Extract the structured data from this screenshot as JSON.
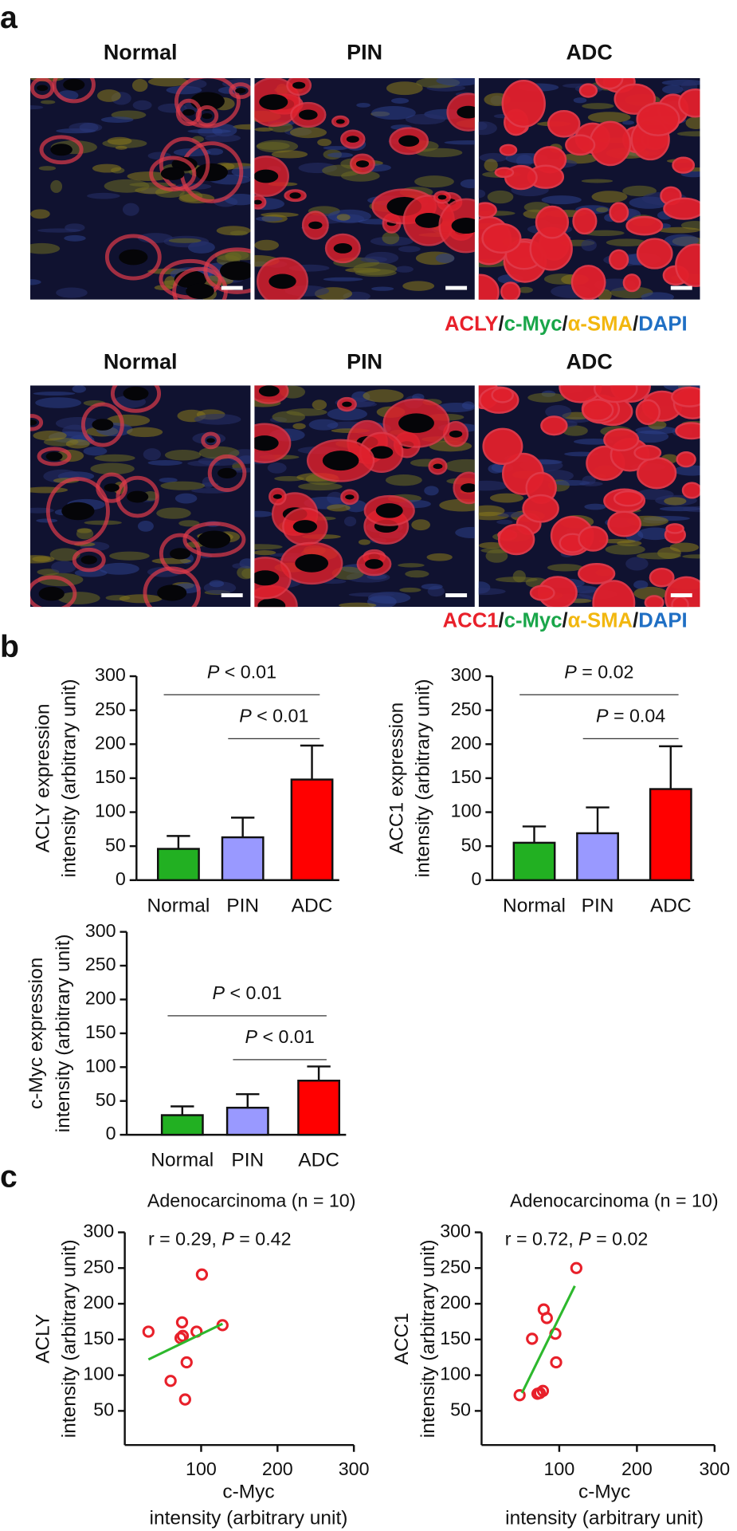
{
  "panel_labels": [
    "a",
    "b",
    "c"
  ],
  "image_rows": [
    {
      "titles": [
        "Normal",
        "PIN",
        "ADC"
      ],
      "legend": [
        {
          "text": "ACLY",
          "color": "#e8202a"
        },
        {
          "text": "/",
          "color": "#1a1a1a"
        },
        {
          "text": "c-Myc",
          "color": "#1aa64a"
        },
        {
          "text": "/",
          "color": "#1a1a1a"
        },
        {
          "text": "α-SMA",
          "color": "#f2b70f"
        },
        {
          "text": "/",
          "color": "#1a1a1a"
        },
        {
          "text": "DAPI",
          "color": "#1f6fc4"
        }
      ]
    },
    {
      "titles": [
        "Normal",
        "PIN",
        "ADC"
      ],
      "legend": [
        {
          "text": "ACC1",
          "color": "#e8202a"
        },
        {
          "text": "/",
          "color": "#1a1a1a"
        },
        {
          "text": "c-Myc",
          "color": "#1aa64a"
        },
        {
          "text": "/",
          "color": "#1a1a1a"
        },
        {
          "text": "α-SMA",
          "color": "#f2b70f"
        },
        {
          "text": "/",
          "color": "#1a1a1a"
        },
        {
          "text": "DAPI",
          "color": "#1f6fc4"
        }
      ]
    }
  ],
  "chart_data": [
    {
      "type": "bar",
      "categories": [
        "Normal",
        "PIN",
        "ADC"
      ],
      "values": [
        46,
        63,
        148
      ],
      "errors": [
        19,
        29,
        50
      ],
      "colors": [
        "#22b022",
        "#9999ff",
        "#ff0000"
      ],
      "y_label": [
        "ACLY expression",
        "intensity (arbitrary unit)"
      ],
      "ylim": [
        0,
        300
      ],
      "yticks": [
        0,
        50,
        100,
        150,
        200,
        250,
        300
      ],
      "annotations": [
        {
          "text": "P < 0.01"
        },
        {
          "text": "P < 0.01"
        }
      ]
    },
    {
      "type": "bar",
      "categories": [
        "Normal",
        "PIN",
        "ADC"
      ],
      "values": [
        55,
        69,
        134
      ],
      "errors": [
        24,
        38,
        63
      ],
      "colors": [
        "#22b022",
        "#9999ff",
        "#ff0000"
      ],
      "y_label": [
        "ACC1 expression",
        "intensity (arbitrary unit)"
      ],
      "ylim": [
        0,
        300
      ],
      "yticks": [
        0,
        50,
        100,
        150,
        200,
        250,
        300
      ],
      "annotations": [
        {
          "text": "P = 0.02"
        },
        {
          "text": "P = 0.04"
        }
      ]
    },
    {
      "type": "bar",
      "categories": [
        "Normal",
        "PIN",
        "ADC"
      ],
      "values": [
        29,
        40,
        80
      ],
      "errors": [
        13,
        20,
        21
      ],
      "colors": [
        "#22b022",
        "#9999ff",
        "#ff0000"
      ],
      "y_label": [
        "c-Myc expression",
        "intensity (arbitrary unit)"
      ],
      "ylim": [
        0,
        300
      ],
      "yticks": [
        0,
        50,
        100,
        150,
        200,
        250,
        300
      ],
      "annotations": [
        {
          "text": "P < 0.01"
        },
        {
          "text": "P < 0.01"
        }
      ]
    },
    {
      "type": "scatter",
      "title": "Adenocarcinoma (n = 10)",
      "annotation": "r = 0.29,  P = 0.42",
      "x": [
        31,
        101,
        73,
        75,
        94,
        128,
        81,
        60,
        79,
        76
      ],
      "y": [
        161,
        241,
        152,
        174,
        161,
        170,
        118,
        92,
        66,
        155
      ],
      "color": "#e8202a",
      "fit": {
        "x": [
          31,
          128
        ],
        "y": [
          122,
          172
        ],
        "color": "#2db82d"
      },
      "x_label": [
        "c-Myc",
        "intensity (arbitrary unit)"
      ],
      "y_label": [
        "ACLY",
        "intensity (arbitrary unit)"
      ],
      "xlim": [
        0,
        300
      ],
      "xticks": [
        100,
        200,
        300
      ],
      "ylim": [
        50,
        300
      ],
      "yticks": [
        50,
        100,
        150,
        200,
        250,
        300
      ]
    },
    {
      "type": "scatter",
      "title": "Adenocarcinoma (n = 10)",
      "annotation": "r = 0.72,  P = 0.02",
      "x": [
        49,
        65,
        80,
        84,
        95,
        96,
        122,
        72,
        79,
        75
      ],
      "y": [
        72,
        151,
        192,
        180,
        158,
        118,
        250,
        74,
        78,
        75
      ],
      "color": "#e8202a",
      "fit": {
        "x": [
          52,
          120
        ],
        "y": [
          75,
          225
        ],
        "color": "#2db82d"
      },
      "x_label": [
        "c-Myc",
        "intensity (arbitrary unit)"
      ],
      "y_label": [
        "ACC1",
        "intensity (arbitrary unit)"
      ],
      "xlim": [
        0,
        300
      ],
      "xticks": [
        100,
        200,
        300
      ],
      "ylim": [
        50,
        300
      ],
      "yticks": [
        50,
        100,
        150,
        200,
        250,
        300
      ]
    }
  ]
}
